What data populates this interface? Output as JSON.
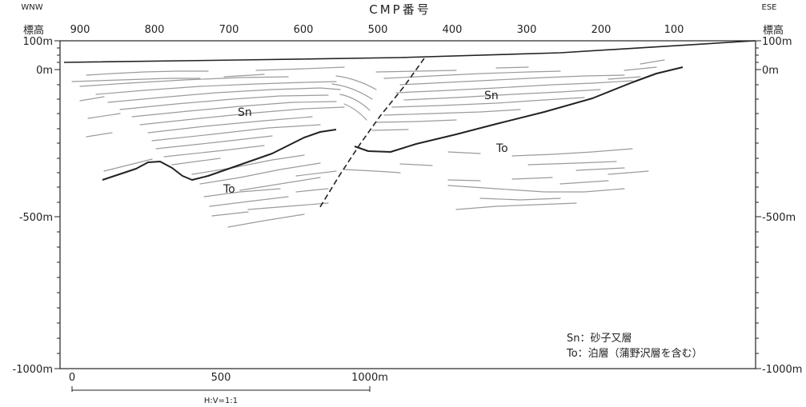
{
  "header": {
    "title": "CMP番号",
    "left_direction": "WNW",
    "right_direction": "ESE",
    "left_axis_label": "標高",
    "right_axis_label": "標高"
  },
  "cmp_ticks": [
    "900",
    "800",
    "700",
    "600",
    "500",
    "400",
    "300",
    "200",
    "100"
  ],
  "left_elevation_ticks": [
    "100m",
    "0m",
    "-500m",
    "-1000m"
  ],
  "right_elevation_ticks": [
    "100m",
    "0m",
    "-500m",
    "-1000m"
  ],
  "units": {
    "sn": "Sn",
    "to_left": "To",
    "sn_right": "Sn",
    "to_right": "To"
  },
  "scale_bar": {
    "ticks": [
      "0",
      "500",
      "1000m"
    ],
    "ratio": "H:V=1:1"
  },
  "legend": [
    "Sn：砂子又層",
    "To：泊層（蒲野沢層を含む）"
  ]
}
